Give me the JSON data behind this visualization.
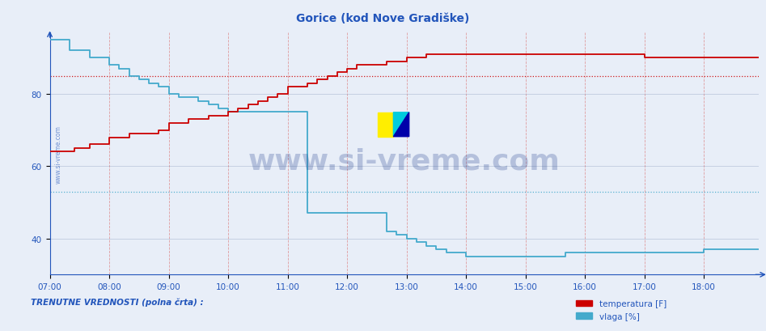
{
  "title": "Gorice (kod Nove Gradiške)",
  "bg_color": "#e8eef8",
  "plot_bg_color": "#e8eef8",
  "axis_color": "#2255bb",
  "grid_color_v": "#dd8888",
  "grid_color_h": "#8899bb",
  "ref_line_red": 85,
  "ref_line_blue": 53,
  "xmin": 0,
  "xmax": 143,
  "ymin": 30,
  "ymax": 97,
  "xtick_labels": [
    "07:00",
    "08:00",
    "09:00",
    "10:00",
    "11:00",
    "12:00",
    "13:00",
    "14:00",
    "15:00",
    "16:00",
    "17:00",
    "18:00"
  ],
  "xtick_positions": [
    0,
    12,
    24,
    36,
    48,
    60,
    72,
    84,
    96,
    108,
    120,
    132
  ],
  "ytick_values": [
    40,
    60,
    80
  ],
  "temp_color": "#cc0000",
  "vlaga_color": "#44aacc",
  "dark_line_color": "#334466",
  "watermark_text": "www.si-vreme.com",
  "watermark_color": "#1a3a8a",
  "watermark_alpha": 0.25,
  "bottom_label": "TRENUTNE VREDNOSTI (polna črta) :",
  "legend_temp": "temperatura [F]",
  "legend_vlaga": "vlaga [%]",
  "temp_data": [
    64,
    64,
    64,
    64,
    64,
    65,
    65,
    65,
    66,
    66,
    66,
    66,
    68,
    68,
    68,
    68,
    69,
    69,
    69,
    69,
    69,
    69,
    70,
    70,
    72,
    72,
    72,
    72,
    73,
    73,
    73,
    73,
    74,
    74,
    74,
    74,
    75,
    75,
    76,
    76,
    77,
    77,
    78,
    78,
    79,
    79,
    80,
    80,
    82,
    82,
    82,
    82,
    83,
    83,
    84,
    84,
    85,
    85,
    86,
    86,
    87,
    87,
    88,
    88,
    88,
    88,
    88,
    88,
    89,
    89,
    89,
    89,
    90,
    90,
    90,
    90,
    91,
    91,
    91,
    91,
    91,
    91,
    91,
    91,
    91,
    91,
    91,
    91,
    91,
    91,
    91,
    91,
    91,
    91,
    91,
    91,
    91,
    91,
    91,
    91,
    91,
    91,
    91,
    91,
    91,
    91,
    91,
    91,
    91,
    91,
    91,
    91,
    91,
    91,
    91,
    91,
    91,
    91,
    91,
    91,
    90,
    90,
    90,
    90,
    90,
    90,
    90,
    90,
    90,
    90,
    90,
    90,
    90,
    90,
    90,
    90,
    90,
    90,
    90,
    90,
    90,
    90,
    90,
    90
  ],
  "vlaga_data": [
    95,
    95,
    95,
    95,
    92,
    92,
    92,
    92,
    90,
    90,
    90,
    90,
    88,
    88,
    87,
    87,
    85,
    85,
    84,
    84,
    83,
    83,
    82,
    82,
    80,
    80,
    79,
    79,
    79,
    79,
    78,
    78,
    77,
    77,
    76,
    76,
    75,
    75,
    75,
    75,
    75,
    75,
    75,
    75,
    75,
    75,
    75,
    75,
    75,
    75,
    75,
    75,
    47,
    47,
    47,
    47,
    47,
    47,
    47,
    47,
    47,
    47,
    47,
    47,
    47,
    47,
    47,
    47,
    42,
    42,
    41,
    41,
    40,
    40,
    39,
    39,
    38,
    38,
    37,
    37,
    36,
    36,
    36,
    36,
    35,
    35,
    35,
    35,
    35,
    35,
    35,
    35,
    35,
    35,
    35,
    35,
    35,
    35,
    35,
    35,
    35,
    35,
    35,
    35,
    36,
    36,
    36,
    36,
    36,
    36,
    36,
    36,
    36,
    36,
    36,
    36,
    36,
    36,
    36,
    36,
    36,
    36,
    36,
    36,
    36,
    36,
    36,
    36,
    36,
    36,
    36,
    36,
    37,
    37,
    37,
    37,
    37,
    37,
    37,
    37,
    37,
    37,
    37,
    37
  ]
}
